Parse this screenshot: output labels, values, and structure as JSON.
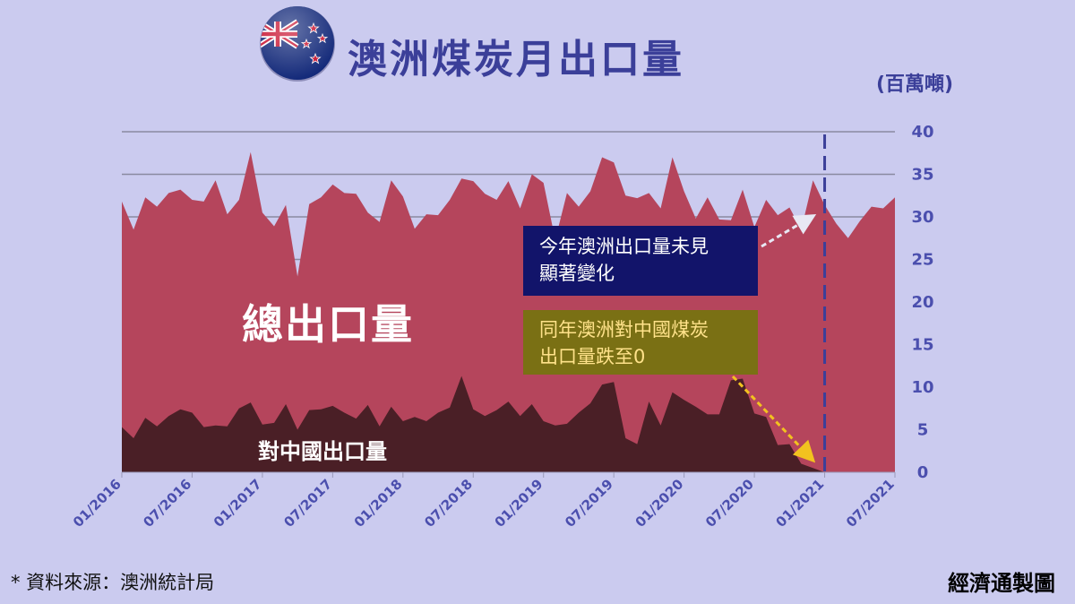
{
  "header": {
    "title": "澳洲煤炭月出口量",
    "unit": "(百萬噸)"
  },
  "labels": {
    "total": "總出口量",
    "china": "對中國出口量"
  },
  "callouts": {
    "no_change": [
      "今年澳洲出口量未見",
      "顯著變化"
    ],
    "china_zero": [
      "同年澳洲對中國煤炭",
      "出口量跌至0"
    ]
  },
  "footer": {
    "source": "* 資料來源：澳洲統計局",
    "credit": "經濟通製圖"
  },
  "colors": {
    "background": "#cbcbef",
    "total": "#b5455c",
    "china": "#4a1f26",
    "accent": "#3b3f99"
  },
  "icons": {
    "flag": "new-zealand-flag-icon"
  },
  "chart_data": {
    "type": "area",
    "ylim": [
      0,
      40
    ],
    "yticks": [
      0,
      5,
      10,
      15,
      20,
      25,
      30,
      35,
      40
    ],
    "xticks": [
      "01/2016",
      "07/2016",
      "01/2017",
      "07/2017",
      "01/2018",
      "07/2018",
      "01/2019",
      "07/2019",
      "01/2020",
      "07/2020",
      "01/2021",
      "07/2021"
    ],
    "reference_line": "01/2021",
    "grid": true,
    "series": [
      {
        "values": [
          31.8,
          28.5,
          32.3,
          31.2,
          32.8,
          33.2,
          32.0,
          31.8,
          34.3,
          30.3,
          32.0,
          37.6,
          30.5,
          28.9,
          31.4,
          23.0,
          31.5,
          32.3,
          33.8,
          32.8,
          32.7,
          30.5,
          29.4,
          34.3,
          32.4,
          28.6,
          30.3,
          30.2,
          32.0,
          34.5,
          34.2,
          32.7,
          32.0,
          34.2,
          31.0,
          35.0,
          34.0,
          27.3,
          32.8,
          31.2,
          33.0,
          37.0,
          36.4,
          32.5,
          32.2,
          32.8,
          31.0,
          37.0,
          33.0,
          29.8,
          32.3,
          29.7,
          29.6,
          33.2,
          28.8,
          32.0,
          30.2,
          31.1,
          28.5,
          34.3,
          31.4,
          29.2,
          27.5,
          29.5,
          31.2,
          31.0,
          32.3
        ]
      },
      {
        "values": [
          5.3,
          4.0,
          6.4,
          5.4,
          6.6,
          7.4,
          7.0,
          5.3,
          5.5,
          5.4,
          7.5,
          8.2,
          5.6,
          5.8,
          8.0,
          5.0,
          7.3,
          7.4,
          7.8,
          7.0,
          6.3,
          7.9,
          5.4,
          7.7,
          6.0,
          6.5,
          6.0,
          7.0,
          7.6,
          11.3,
          7.4,
          6.6,
          7.3,
          8.3,
          6.6,
          8.0,
          6.0,
          5.5,
          5.7,
          7.0,
          8.1,
          10.3,
          10.6,
          4.0,
          3.3,
          8.3,
          5.5,
          9.4,
          8.5,
          7.7,
          6.8,
          6.8,
          10.8,
          11.0,
          6.9,
          6.5,
          3.2,
          3.3,
          1.0,
          0.5,
          0.0,
          0.0,
          0.0,
          0.0,
          0.0,
          0.0,
          0.0
        ]
      }
    ]
  }
}
